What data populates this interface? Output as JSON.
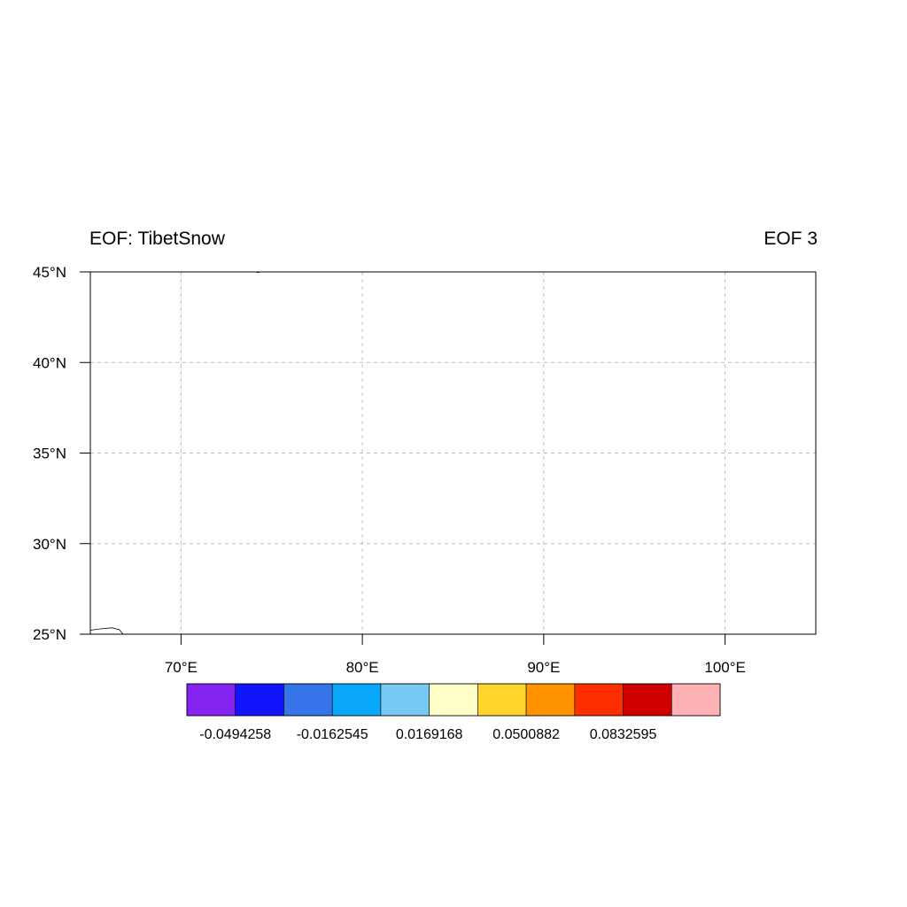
{
  "titles": {
    "left": "EOF: TibetSnow",
    "right": "EOF 3"
  },
  "map": {
    "lon_range": [
      65,
      105
    ],
    "lat_range": [
      25,
      45
    ],
    "grid": true,
    "lat_ticks": [
      {
        "value": 25,
        "label": "25°N"
      },
      {
        "value": 30,
        "label": "30°N"
      },
      {
        "value": 35,
        "label": "35°N"
      },
      {
        "value": 40,
        "label": "40°N"
      },
      {
        "value": 45,
        "label": "45°N"
      }
    ],
    "lon_ticks": [
      {
        "value": 70,
        "label": "70°E"
      },
      {
        "value": 80,
        "label": "80°E"
      },
      {
        "value": 90,
        "label": "90°E"
      },
      {
        "value": 100,
        "label": "100°E"
      }
    ],
    "coastline": [
      [
        65.0,
        25.22
      ],
      [
        65.6,
        25.3
      ],
      [
        66.2,
        25.35
      ],
      [
        66.6,
        25.25
      ],
      [
        66.8,
        25.0
      ]
    ],
    "boundary_mark": [
      [
        74.1,
        45.0
      ],
      [
        74.3,
        44.96
      ]
    ]
  },
  "colorbar": {
    "colors": [
      "#8424f0",
      "#1115fb",
      "#3574e9",
      "#0aa8fb",
      "#76c9f2",
      "#ffffc8",
      "#ffd42b",
      "#ff9300",
      "#ff2e00",
      "#d10000",
      "#ffb2b5"
    ],
    "labels": [
      {
        "boundary": 1,
        "text": "-0.0494258"
      },
      {
        "boundary": 3,
        "text": "-0.0162545"
      },
      {
        "boundary": 5,
        "text": "0.0169168"
      },
      {
        "boundary": 7,
        "text": "0.0500882"
      },
      {
        "boundary": 9,
        "text": "0.0832595"
      }
    ]
  }
}
